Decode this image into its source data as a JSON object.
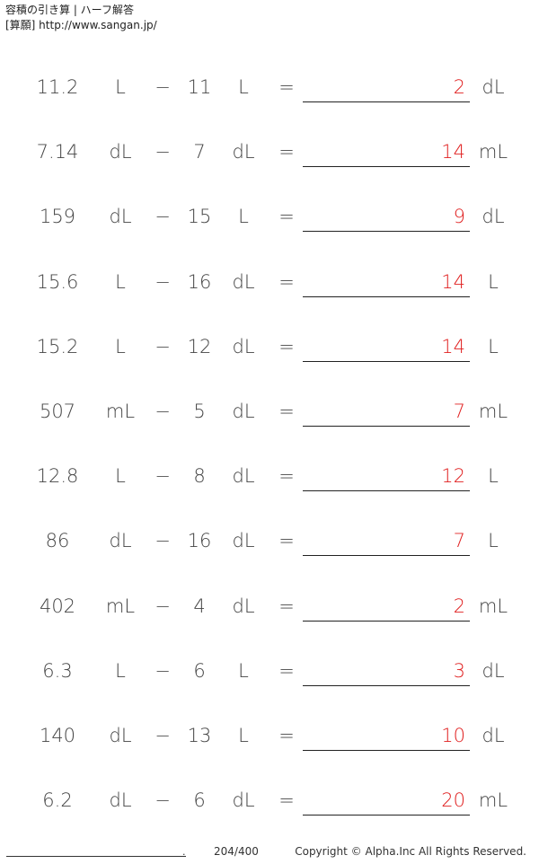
{
  "header": {
    "title": "容積の引き算 | ハーフ解答",
    "site": "[算願] http://www.sangan.jp/"
  },
  "operator": "−",
  "equals": "=",
  "problems": [
    {
      "a": "11.2",
      "unit_a": "L",
      "b": "11",
      "unit_b": "L",
      "answer": "2",
      "unit_result": "dL"
    },
    {
      "a": "7.14",
      "unit_a": "dL",
      "b": "7",
      "unit_b": "dL",
      "answer": "14",
      "unit_result": "mL"
    },
    {
      "a": "159",
      "unit_a": "dL",
      "b": "15",
      "unit_b": "L",
      "answer": "9",
      "unit_result": "dL"
    },
    {
      "a": "15.6",
      "unit_a": "L",
      "b": "16",
      "unit_b": "dL",
      "answer": "14",
      "unit_result": "L"
    },
    {
      "a": "15.2",
      "unit_a": "L",
      "b": "12",
      "unit_b": "dL",
      "answer": "14",
      "unit_result": "L"
    },
    {
      "a": "507",
      "unit_a": "mL",
      "b": "5",
      "unit_b": "dL",
      "answer": "7",
      "unit_result": "mL"
    },
    {
      "a": "12.8",
      "unit_a": "L",
      "b": "8",
      "unit_b": "dL",
      "answer": "12",
      "unit_result": "L"
    },
    {
      "a": "86",
      "unit_a": "dL",
      "b": "16",
      "unit_b": "dL",
      "answer": "7",
      "unit_result": "L"
    },
    {
      "a": "402",
      "unit_a": "mL",
      "b": "4",
      "unit_b": "dL",
      "answer": "2",
      "unit_result": "mL"
    },
    {
      "a": "6.3",
      "unit_a": "L",
      "b": "6",
      "unit_b": "L",
      "answer": "3",
      "unit_result": "dL"
    },
    {
      "a": "140",
      "unit_a": "dL",
      "b": "13",
      "unit_b": "L",
      "answer": "10",
      "unit_result": "dL"
    },
    {
      "a": "6.2",
      "unit_a": "dL",
      "b": "6",
      "unit_b": "dL",
      "answer": "20",
      "unit_result": "mL"
    }
  ],
  "footer": {
    "dot": ".",
    "page": "204/400",
    "copyright": "Copyright © Alpha.Inc All Rights Reserved."
  },
  "colors": {
    "answer": "#e02020",
    "text": "#444444"
  }
}
